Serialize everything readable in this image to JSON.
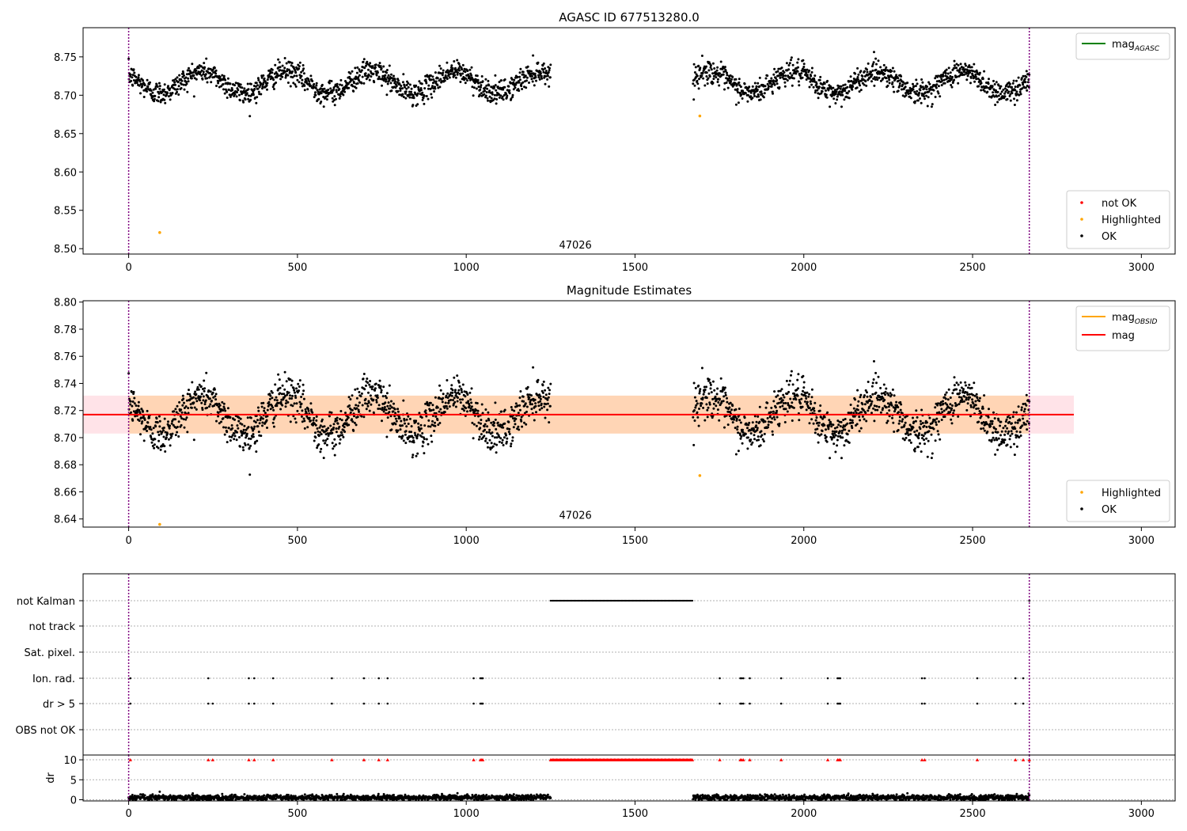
{
  "chart_data": [
    {
      "type": "scatter",
      "title": "AGASC ID 677513280.0",
      "xlim": [
        -135,
        3100
      ],
      "ylim": [
        8.493,
        8.788
      ],
      "xticks": [
        0,
        500,
        1000,
        1500,
        2000,
        2500,
        3000
      ],
      "yticks": [
        8.5,
        8.55,
        8.6,
        8.65,
        8.7,
        8.75
      ],
      "obsid_label": {
        "text": "47026",
        "x": 1275,
        "y": 8.5
      },
      "vlines": [
        0,
        2668
      ],
      "line_legend": {
        "placement": "top-right",
        "entries": [
          {
            "label": "mag",
            "sub": "AGASC",
            "color": "#008000"
          }
        ]
      },
      "point_legend": {
        "placement": "bottom-right",
        "entries": [
          {
            "label": "not OK",
            "color": "#ff0000"
          },
          {
            "label": "Highlighted",
            "color": "#ffa500"
          },
          {
            "label": "OK",
            "color": "#000000"
          }
        ]
      },
      "highlighted_points": [
        {
          "x": 92,
          "y": 8.521
        },
        {
          "x": 1692,
          "y": 8.673
        }
      ],
      "series": [
        {
          "label": "OK",
          "color": "#000000",
          "segments": [
            [
              0,
              1250
            ],
            [
              1672,
              2668
            ]
          ],
          "mean": 8.717,
          "amplitude": 0.014,
          "period": 250,
          "phase": 9.5,
          "scatter": 0.0075
        }
      ]
    },
    {
      "type": "scatter",
      "title": "Magnitude Estimates",
      "xlim": [
        -135,
        3100
      ],
      "ylim": [
        8.634,
        8.801
      ],
      "xticks": [
        0,
        500,
        1000,
        1500,
        2000,
        2500,
        3000
      ],
      "yticks": [
        8.64,
        8.66,
        8.68,
        8.7,
        8.72,
        8.74,
        8.76,
        8.78,
        8.8
      ],
      "obsid_label": {
        "text": "47026",
        "x": 1275,
        "y": 8.64
      },
      "vlines": [
        0,
        2668
      ],
      "mag_line": {
        "value": 8.717,
        "x": [
          -135,
          2800
        ],
        "color": "#ff0000"
      },
      "mag_band": {
        "low": 8.703,
        "high": 8.731,
        "x": [
          -135,
          2800
        ],
        "color": "#ffc0cb"
      },
      "obsid_band": {
        "low": 8.703,
        "high": 8.731,
        "x": [
          0,
          2668
        ],
        "color": "#ffa500"
      },
      "line_legend": {
        "placement": "top-right",
        "entries": [
          {
            "label": "mag",
            "sub": "OBSID",
            "color": "#ffa500"
          },
          {
            "label": "mag",
            "sub": "",
            "color": "#ff0000"
          }
        ]
      },
      "point_legend": {
        "placement": "bottom-right",
        "entries": [
          {
            "label": "Highlighted",
            "color": "#ffa500"
          },
          {
            "label": "OK",
            "color": "#000000"
          }
        ]
      },
      "highlighted_points": [
        {
          "x": 92,
          "y": 8.636
        },
        {
          "x": 1692,
          "y": 8.672
        }
      ],
      "series": [
        {
          "label": "OK",
          "color": "#000000",
          "segments": [
            [
              0,
              1250
            ],
            [
              1672,
              2668
            ]
          ],
          "mean": 8.717,
          "amplitude": 0.014,
          "period": 250,
          "phase": 9.5,
          "scatter": 0.0075
        }
      ]
    },
    {
      "type": "scatter",
      "title": "",
      "xlim": [
        -135,
        3100
      ],
      "xticks": [
        0,
        500,
        1000,
        1500,
        2000,
        2500,
        3000
      ],
      "vlines": [
        0,
        2668
      ],
      "flag_rows": [
        "not Kalman",
        "not track",
        "Sat. pixel.",
        "Ion. rad.",
        "dr > 5",
        "OBS not OK"
      ],
      "flags": {
        "not Kalman": {
          "ranges": [
            [
              1250,
              1672
            ]
          ],
          "points": [
            2668
          ]
        },
        "not track": {
          "ranges": [],
          "points": []
        },
        "Sat. pixel.": {
          "ranges": [],
          "points": []
        },
        "Ion. rad.": {
          "ranges": [],
          "points": [
            5,
            236,
            356,
            372,
            428,
            602,
            697,
            741,
            767,
            1022,
            1042,
            1046,
            1049,
            1751,
            1812,
            1816,
            1821,
            1840,
            1933,
            2071,
            2100,
            2104,
            2108,
            2350,
            2358,
            2514,
            2627,
            2650
          ]
        },
        "dr > 5": {
          "ranges": [],
          "points": [
            5,
            236,
            249,
            356,
            372,
            428,
            602,
            697,
            741,
            767,
            1022,
            1042,
            1046,
            1049,
            1751,
            1812,
            1816,
            1821,
            1840,
            1933,
            2071,
            2100,
            2104,
            2108,
            2350,
            2358,
            2514,
            2627,
            2650
          ]
        },
        "OBS not OK": {
          "ranges": [],
          "points": []
        }
      },
      "dr": {
        "ylabel": "dr",
        "ylim": [
          -0.3,
          11.2
        ],
        "yticks": [
          0,
          5,
          10
        ],
        "segments": [
          [
            0,
            1250
          ],
          [
            1672,
            2668
          ]
        ],
        "typical": 0.55,
        "outliers": [
          {
            "x": 92,
            "y": 2.0
          }
        ],
        "capped": {
          "value": 10,
          "color": "#ff0000",
          "ranges": [
            [
              1250,
              1672
            ]
          ],
          "points": [
            5,
            236,
            249,
            356,
            372,
            428,
            602,
            697,
            741,
            767,
            1022,
            1042,
            1046,
            1049,
            1751,
            1812,
            1816,
            1821,
            1840,
            1933,
            2071,
            2100,
            2104,
            2108,
            2350,
            2358,
            2514,
            2627,
            2650,
            2668
          ]
        }
      }
    }
  ]
}
